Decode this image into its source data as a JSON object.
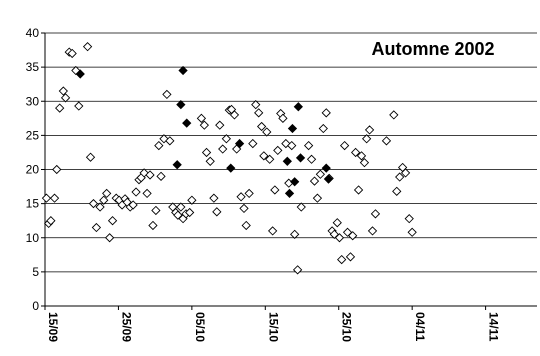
{
  "chart_data": {
    "type": "scatter",
    "title": "Automne 2002",
    "xlabel": "",
    "ylabel": "",
    "ylim": [
      0,
      40
    ],
    "yticks": [
      0,
      5,
      10,
      15,
      20,
      25,
      30,
      35,
      40
    ],
    "grid": "horizontal",
    "x_tick_labels": [
      "15/09",
      "25/09",
      "05/10",
      "15/10",
      "25/10",
      "04/11",
      "14/11"
    ],
    "x_tick_days": [
      0,
      10,
      20,
      30,
      40,
      50,
      60
    ],
    "xlim_days": [
      0,
      67
    ],
    "series": [
      {
        "marker": "open-diamond",
        "points": [
          [
            0.2,
            15.8
          ],
          [
            0.5,
            12.1
          ],
          [
            0.8,
            12.5
          ],
          [
            1.3,
            15.8
          ],
          [
            1.6,
            20
          ],
          [
            2.0,
            29
          ],
          [
            2.5,
            31.5
          ],
          [
            2.8,
            30.5
          ],
          [
            3.3,
            37.2
          ],
          [
            3.7,
            37
          ],
          [
            4.2,
            34.5
          ],
          [
            4.6,
            29.3
          ],
          [
            5.8,
            38
          ],
          [
            6.2,
            21.8
          ],
          [
            6.6,
            15
          ],
          [
            7.0,
            11.5
          ],
          [
            7.5,
            14.5
          ],
          [
            8.0,
            15.5
          ],
          [
            8.4,
            16.5
          ],
          [
            8.8,
            10
          ],
          [
            9.2,
            12.5
          ],
          [
            9.7,
            15.8
          ],
          [
            10.1,
            15.5
          ],
          [
            10.5,
            14.8
          ],
          [
            10.9,
            15.7
          ],
          [
            11.2,
            15.2
          ],
          [
            11.6,
            14.5
          ],
          [
            12.0,
            14.8
          ],
          [
            12.4,
            16.7
          ],
          [
            12.8,
            18.5
          ],
          [
            13.1,
            18.8
          ],
          [
            13.5,
            19.5
          ],
          [
            13.9,
            16.5
          ],
          [
            14.3,
            19.2
          ],
          [
            14.7,
            11.8
          ],
          [
            15.1,
            14
          ],
          [
            15.5,
            23.5
          ],
          [
            15.8,
            19
          ],
          [
            16.2,
            24.5
          ],
          [
            16.6,
            31
          ],
          [
            17.0,
            24.2
          ],
          [
            17.4,
            14.5
          ],
          [
            17.8,
            13.7
          ],
          [
            18.1,
            13.3
          ],
          [
            18.5,
            14.5
          ],
          [
            18.8,
            12.8
          ],
          [
            19.2,
            13.5
          ],
          [
            19.7,
            13.7
          ],
          [
            20.0,
            15.5
          ],
          [
            21.3,
            27.5
          ],
          [
            21.7,
            26.5
          ],
          [
            22.0,
            22.5
          ],
          [
            22.5,
            21.2
          ],
          [
            23.0,
            15.8
          ],
          [
            23.4,
            13.8
          ],
          [
            23.8,
            26.5
          ],
          [
            24.2,
            23
          ],
          [
            24.7,
            24.5
          ],
          [
            25.1,
            28.7
          ],
          [
            25.4,
            28.8
          ],
          [
            25.8,
            28
          ],
          [
            26.1,
            23
          ],
          [
            26.7,
            16
          ],
          [
            27.1,
            14.3
          ],
          [
            27.4,
            11.8
          ],
          [
            27.8,
            16.5
          ],
          [
            28.3,
            23.8
          ],
          [
            28.7,
            29.5
          ],
          [
            29.1,
            28.3
          ],
          [
            29.5,
            26.3
          ],
          [
            29.8,
            22
          ],
          [
            30.2,
            25.5
          ],
          [
            30.6,
            21.5
          ],
          [
            31.0,
            11
          ],
          [
            31.3,
            17
          ],
          [
            31.7,
            22.8
          ],
          [
            32.1,
            28.2
          ],
          [
            32.4,
            27.5
          ],
          [
            32.8,
            23.8
          ],
          [
            33.2,
            18
          ],
          [
            33.6,
            23.5
          ],
          [
            34.0,
            10.5
          ],
          [
            34.4,
            5.3
          ],
          [
            34.9,
            14.5
          ],
          [
            35.9,
            23.5
          ],
          [
            36.3,
            21.5
          ],
          [
            36.7,
            18.3
          ],
          [
            37.1,
            15.8
          ],
          [
            37.5,
            19.3
          ],
          [
            37.9,
            26
          ],
          [
            38.3,
            28.3
          ],
          [
            38.7,
            18.7
          ],
          [
            39.1,
            11
          ],
          [
            39.4,
            10.5
          ],
          [
            39.8,
            12.2
          ],
          [
            40.1,
            10
          ],
          [
            40.4,
            6.8
          ],
          [
            40.8,
            23.5
          ],
          [
            41.2,
            10.8
          ],
          [
            41.6,
            7.2
          ],
          [
            41.9,
            10.3
          ],
          [
            42.3,
            22.5
          ],
          [
            42.7,
            17
          ],
          [
            43.1,
            22
          ],
          [
            43.5,
            21
          ],
          [
            43.8,
            24.5
          ],
          [
            44.2,
            25.8
          ],
          [
            44.6,
            11
          ],
          [
            45.0,
            13.5
          ],
          [
            46.5,
            24.2
          ],
          [
            47.5,
            28
          ],
          [
            47.9,
            16.8
          ],
          [
            48.3,
            18.9
          ],
          [
            48.7,
            20.3
          ],
          [
            49.1,
            19.5
          ],
          [
            49.6,
            12.8
          ],
          [
            50.0,
            10.8
          ]
        ]
      },
      {
        "marker": "filled-diamond",
        "points": [
          [
            4.8,
            34
          ],
          [
            18.0,
            20.7
          ],
          [
            18.5,
            29.5
          ],
          [
            18.8,
            34.5
          ],
          [
            19.3,
            26.8
          ],
          [
            25.3,
            20.2
          ],
          [
            26.5,
            23.8
          ],
          [
            33.0,
            21.2
          ],
          [
            33.3,
            16.5
          ],
          [
            33.7,
            26
          ],
          [
            34.0,
            18.2
          ],
          [
            34.5,
            29.2
          ],
          [
            34.8,
            21.7
          ],
          [
            38.3,
            20.2
          ],
          [
            38.6,
            18.6
          ]
        ]
      }
    ]
  }
}
